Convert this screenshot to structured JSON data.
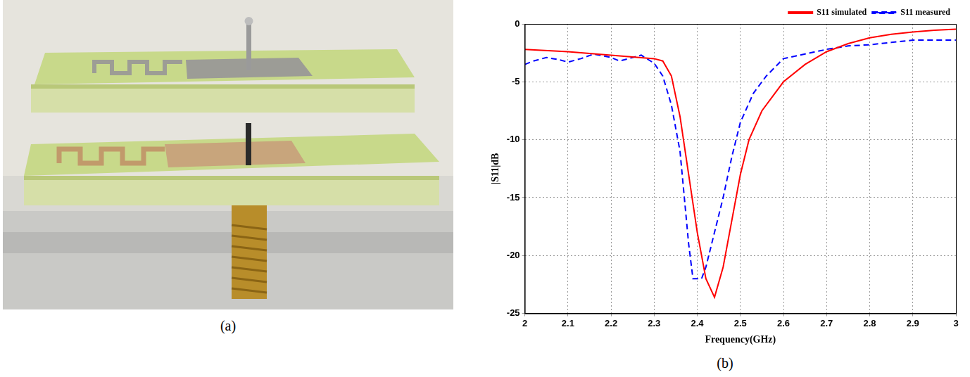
{
  "photo_caption": "(a)",
  "chart_data": {
    "type": "line",
    "caption": "(b)",
    "x_label": "Frequency(GHz)",
    "y_label": "|S11|dB",
    "xlim": [
      2,
      3
    ],
    "xticks": [
      2,
      2.1,
      2.2,
      2.3,
      2.4,
      2.5,
      2.6,
      2.7,
      2.8,
      2.9,
      3
    ],
    "ylim": [
      -25,
      0
    ],
    "yticks": [
      -25,
      -20,
      -15,
      -10,
      -5,
      0
    ],
    "grid": true,
    "legend": "upper right",
    "series": [
      {
        "name": "S11 simulated",
        "color": "#ff0000",
        "line_style": "solid",
        "x": [
          2.0,
          2.1,
          2.2,
          2.3,
          2.32,
          2.34,
          2.36,
          2.38,
          2.4,
          2.42,
          2.44,
          2.46,
          2.48,
          2.5,
          2.52,
          2.55,
          2.6,
          2.65,
          2.7,
          2.75,
          2.8,
          2.85,
          2.9,
          2.95,
          3.0
        ],
        "values": [
          -2.2,
          -2.4,
          -2.7,
          -3.0,
          -3.2,
          -4.5,
          -8,
          -13,
          -18,
          -22,
          -23.6,
          -21,
          -17,
          -13,
          -10,
          -7.5,
          -5,
          -3.5,
          -2.4,
          -1.7,
          -1.2,
          -0.9,
          -0.7,
          -0.55,
          -0.45
        ]
      },
      {
        "name": "S11 measured",
        "color": "#0000ff",
        "line_style": "dashed",
        "x": [
          2.0,
          2.02,
          2.05,
          2.08,
          2.1,
          2.13,
          2.16,
          2.2,
          2.22,
          2.25,
          2.27,
          2.3,
          2.32,
          2.34,
          2.36,
          2.37,
          2.38,
          2.39,
          2.41,
          2.42,
          2.44,
          2.46,
          2.48,
          2.5,
          2.53,
          2.56,
          2.6,
          2.65,
          2.7,
          2.75,
          2.8,
          2.85,
          2.9,
          2.95,
          3.0
        ],
        "values": [
          -3.5,
          -3.2,
          -2.9,
          -3.1,
          -3.3,
          -3.0,
          -2.6,
          -2.9,
          -3.2,
          -2.9,
          -2.7,
          -3.4,
          -4.5,
          -7,
          -11,
          -15,
          -19,
          -22,
          -22,
          -21,
          -18,
          -15,
          -11.5,
          -8.5,
          -6,
          -4.5,
          -3,
          -2.6,
          -2.2,
          -1.9,
          -1.8,
          -1.6,
          -1.4,
          -1.4,
          -1.4
        ]
      }
    ]
  }
}
